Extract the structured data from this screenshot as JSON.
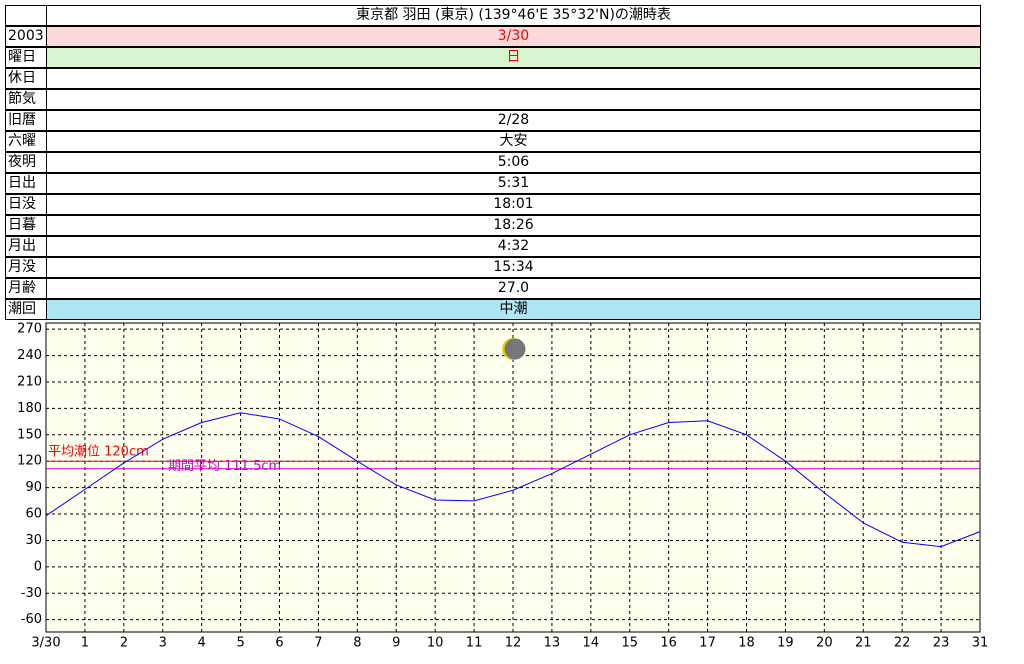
{
  "table": {
    "title": "東京都 羽田 (東京) (139°46'E 35°32'N)の潮時表",
    "rows": [
      {
        "label": "2003",
        "value": "3/30",
        "background": "#ffd9d9",
        "text_color": "#ff0000"
      },
      {
        "label": "曜日",
        "value": "日",
        "background": "#d9f5d0",
        "text_color": "#ff0000"
      },
      {
        "label": "休日"
      },
      {
        "label": "節気"
      },
      {
        "label": "旧暦",
        "value": "2/28"
      },
      {
        "label": "六曜",
        "value": "大安"
      },
      {
        "label": "夜明",
        "value": "5:06"
      },
      {
        "label": "日出",
        "value": "5:31"
      },
      {
        "label": "日没",
        "value": "18:01"
      },
      {
        "label": "日暮",
        "value": "18:26"
      },
      {
        "label": "月出",
        "value": "4:32"
      },
      {
        "label": "月没",
        "value": "15:34"
      },
      {
        "label": "月齢",
        "value": "27.0"
      },
      {
        "label": "潮回",
        "value": "中潮",
        "background": "#aee6f2"
      }
    ]
  },
  "chart_data": {
    "type": "line",
    "x": [
      0,
      1,
      2,
      3,
      4,
      5,
      6,
      7,
      8,
      9,
      10,
      11,
      12,
      13,
      14,
      15,
      16,
      17,
      18,
      19,
      20,
      21,
      22,
      23,
      24
    ],
    "series": [
      {
        "color": "#0000ff",
        "values": [
          58,
          88,
          118,
          145,
          164,
          175,
          168,
          148,
          120,
          93,
          76,
          75,
          87,
          106,
          128,
          150,
          164,
          166,
          150,
          120,
          84,
          50,
          28,
          23,
          40
        ]
      }
    ],
    "reference_lines": [
      {
        "label": "平均潮位 120cm",
        "value": 120,
        "color": "#ff0000"
      },
      {
        "label": "期間平均 111.5cm",
        "value": 111.5,
        "color": "#cc00cc"
      }
    ],
    "xlim": [
      0,
      24
    ],
    "xticks": [
      {
        "value": 0,
        "label": "3/30"
      },
      1,
      2,
      3,
      4,
      5,
      6,
      7,
      8,
      9,
      10,
      11,
      12,
      13,
      14,
      15,
      16,
      17,
      18,
      19,
      20,
      21,
      22,
      23,
      {
        "value": 24,
        "label": "31"
      }
    ],
    "ylim": [
      -74,
      277
    ],
    "yticks": [
      -60,
      -30,
      0,
      30,
      60,
      90,
      120,
      150,
      180,
      210,
      240,
      270
    ],
    "grid": true,
    "plot_background": "#fffff0"
  }
}
